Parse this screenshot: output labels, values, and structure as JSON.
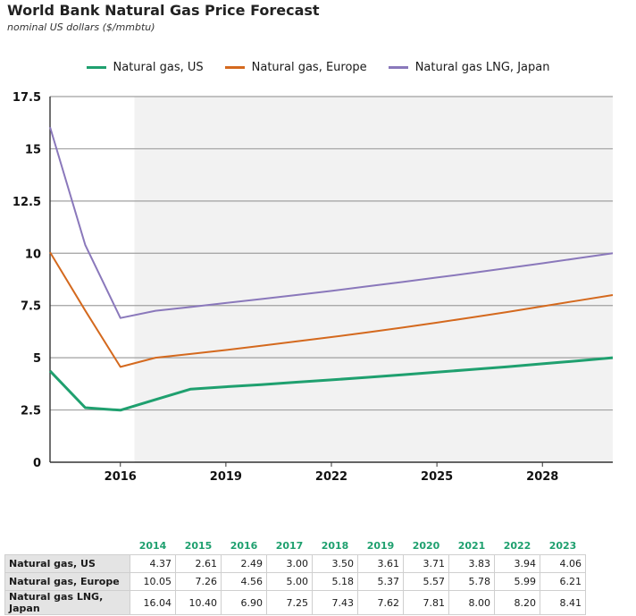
{
  "title": "World Bank Natural Gas Price Forecast",
  "subtitle": "nominal US dollars ($/mmbtu)",
  "chart_data": {
    "type": "line",
    "title": "World Bank Natural Gas Price Forecast",
    "subtitle": "nominal US dollars ($/mmbtu)",
    "x_range": [
      2014,
      2030
    ],
    "ylim": [
      0,
      17.5
    ],
    "y_ticks": [
      "0",
      "2.5",
      "5",
      "7.5",
      "10",
      "12.5",
      "15",
      "17.5"
    ],
    "x_ticks": [
      "2016",
      "2019",
      "2022",
      "2025",
      "2028"
    ],
    "shaded_forecast_from": 2016.4,
    "grid": true,
    "legend": "top-center",
    "series": [
      {
        "name": "Natural gas, US",
        "color": "#1fa06f",
        "x": [
          2014,
          2015,
          2016,
          2017,
          2018,
          2019,
          2020,
          2021,
          2022,
          2023,
          2024,
          2025,
          2026,
          2027,
          2028,
          2029,
          2030
        ],
        "y": [
          4.37,
          2.61,
          2.49,
          3.0,
          3.5,
          3.61,
          3.71,
          3.83,
          3.94,
          4.06,
          4.18,
          4.31,
          4.44,
          4.57,
          4.71,
          4.85,
          5.0
        ]
      },
      {
        "name": "Natural gas, Europe",
        "color": "#d4691e",
        "x": [
          2014,
          2015,
          2016,
          2017,
          2018,
          2019,
          2020,
          2021,
          2022,
          2023,
          2024,
          2025,
          2026,
          2027,
          2028,
          2029,
          2030
        ],
        "y": [
          10.05,
          7.26,
          4.56,
          5.0,
          5.18,
          5.37,
          5.57,
          5.78,
          5.99,
          6.21,
          6.44,
          6.68,
          6.93,
          7.19,
          7.46,
          7.73,
          8.0
        ]
      },
      {
        "name": "Natural gas LNG, Japan",
        "color": "#8a78bb",
        "x": [
          2014,
          2015,
          2016,
          2017,
          2018,
          2019,
          2020,
          2021,
          2022,
          2023,
          2024,
          2025,
          2026,
          2027,
          2028,
          2029,
          2030
        ],
        "y": [
          16.04,
          10.4,
          6.9,
          7.25,
          7.43,
          7.62,
          7.81,
          8.0,
          8.2,
          8.41,
          8.62,
          8.84,
          9.06,
          9.29,
          9.52,
          9.76,
          10.0
        ]
      }
    ]
  },
  "table": {
    "years": [
      "2014",
      "2015",
      "2016",
      "2017",
      "2018",
      "2019",
      "2020",
      "2021",
      "2022",
      "2023"
    ],
    "rows": [
      {
        "label": "Natural gas, US",
        "values": [
          "4.37",
          "2.61",
          "2.49",
          "3.00",
          "3.50",
          "3.61",
          "3.71",
          "3.83",
          "3.94",
          "4.06"
        ]
      },
      {
        "label": "Natural gas, Europe",
        "values": [
          "10.05",
          "7.26",
          "4.56",
          "5.00",
          "5.18",
          "5.37",
          "5.57",
          "5.78",
          "5.99",
          "6.21"
        ]
      },
      {
        "label": "Natural gas LNG, Japan",
        "values": [
          "16.04",
          "10.40",
          "6.90",
          "7.25",
          "7.43",
          "7.62",
          "7.81",
          "8.00",
          "8.20",
          "8.41"
        ]
      }
    ]
  }
}
